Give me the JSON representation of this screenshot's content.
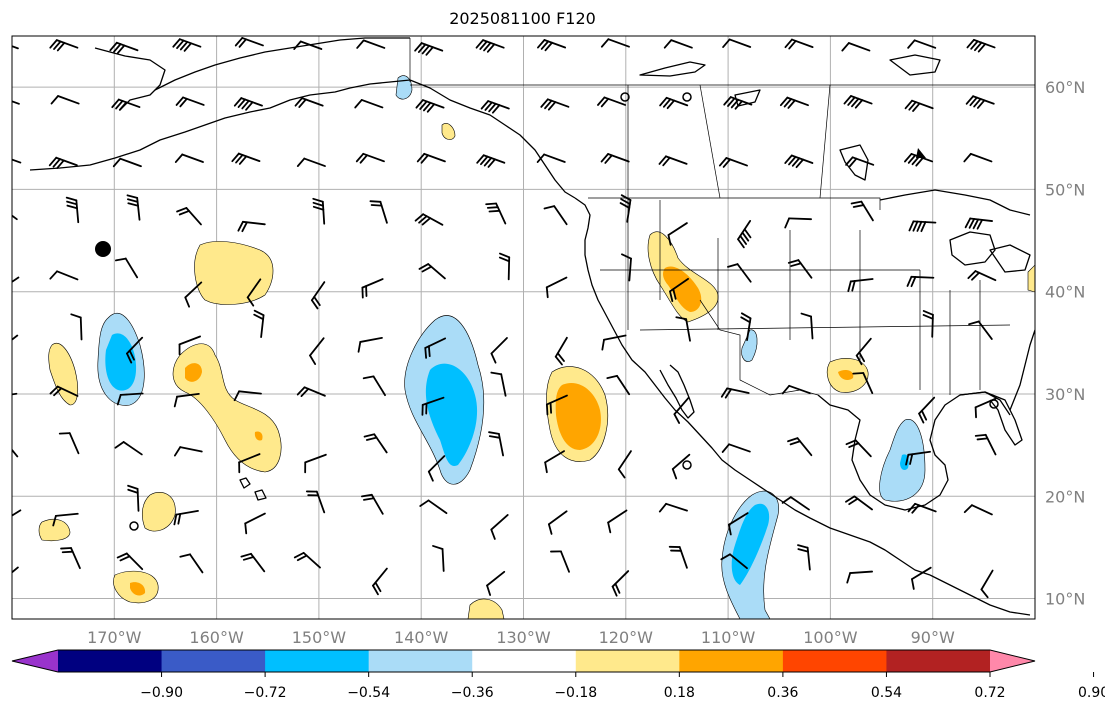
{
  "title": "2025081100 F120",
  "map": {
    "lon_ticks": [
      {
        "label": "170°W",
        "lon": -170
      },
      {
        "label": "160°W",
        "lon": -160
      },
      {
        "label": "150°W",
        "lon": -150
      },
      {
        "label": "140°W",
        "lon": -140
      },
      {
        "label": "130°W",
        "lon": -130
      },
      {
        "label": "120°W",
        "lon": -120
      },
      {
        "label": "110°W",
        "lon": -110
      },
      {
        "label": "100°W",
        "lon": -100
      },
      {
        "label": "90°W",
        "lon": -90
      }
    ],
    "lat_ticks": [
      {
        "label": "60°N",
        "lat": 60
      },
      {
        "label": "50°N",
        "lat": 50
      },
      {
        "label": "40°N",
        "lat": 40
      },
      {
        "label": "30°N",
        "lat": 30
      },
      {
        "label": "20°N",
        "lat": 20
      },
      {
        "label": "10°N",
        "lat": 10
      }
    ],
    "extent": {
      "lon_min": -180,
      "lon_max": -80,
      "lat_min": 8,
      "lat_max": 65
    }
  },
  "colorbar": {
    "tick_labels": [
      "−0.90",
      "−0.72",
      "−0.54",
      "−0.36",
      "−0.18",
      "0.18",
      "0.36",
      "0.54",
      "0.72",
      "0.90"
    ],
    "colors": [
      "#9933cc",
      "#000080",
      "#3a5bc7",
      "#00bfff",
      "#aadcf7",
      "#ffffff",
      "#ffe98c",
      "#ffa500",
      "#ff4500",
      "#b22222",
      "#ff88aa"
    ]
  }
}
